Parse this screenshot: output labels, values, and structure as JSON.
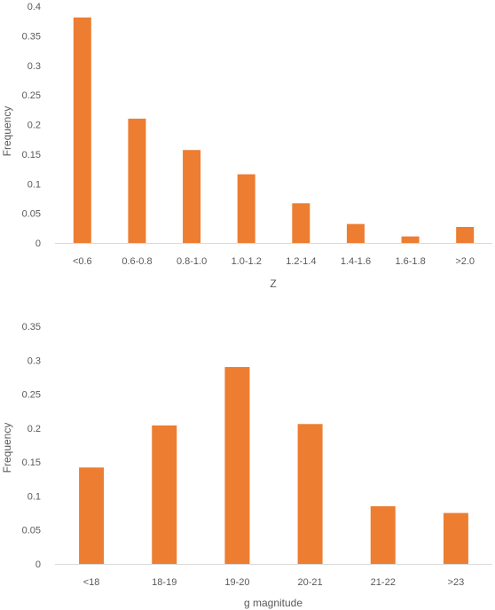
{
  "chart_data": [
    {
      "type": "bar",
      "categories": [
        "<0.6",
        "0.6-0.8",
        "0.8-1.0",
        "1.0-1.2",
        "1.2-1.4",
        "1.4-1.6",
        "1.6-1.8",
        ">2.0"
      ],
      "values": [
        0.381,
        0.21,
        0.157,
        0.116,
        0.067,
        0.032,
        0.011,
        0.027
      ],
      "xlabel": "Z",
      "ylabel": "Frequency",
      "ylim": [
        0,
        0.4
      ],
      "yticks": [
        0,
        0.05,
        0.1,
        0.15,
        0.2,
        0.25,
        0.3,
        0.35,
        0.4
      ],
      "ytick_labels": [
        "0",
        "0.05",
        "0.1",
        "0.15",
        "0.2",
        "0.25",
        "0.3",
        "0.35",
        "0.4"
      ],
      "grid": false,
      "bar_color": "#ed7d31"
    },
    {
      "type": "bar",
      "categories": [
        "<18",
        "18-19",
        "19-20",
        "20-21",
        "21-22",
        ">23"
      ],
      "values": [
        0.142,
        0.204,
        0.29,
        0.206,
        0.085,
        0.075
      ],
      "xlabel": "g magnitude",
      "ylabel": "Frequency",
      "ylim": [
        0,
        0.35
      ],
      "yticks": [
        0,
        0.05,
        0.1,
        0.15,
        0.2,
        0.25,
        0.3,
        0.35
      ],
      "ytick_labels": [
        "0",
        "0.05",
        "0.1",
        "0.15",
        "0.2",
        "0.25",
        "0.3",
        "0.35"
      ],
      "grid": false,
      "bar_color": "#ed7d31"
    }
  ]
}
